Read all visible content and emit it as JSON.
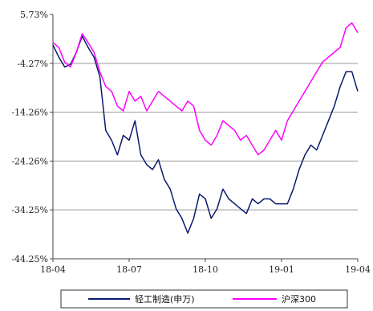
{
  "chart_data": {
    "type": "line",
    "title": "",
    "xlabel": "",
    "ylabel": "",
    "ylim": [
      -44.25,
      5.73
    ],
    "y_ticks": [
      5.73,
      -4.27,
      -14.26,
      -24.26,
      -34.25,
      -44.25
    ],
    "y_tick_labels": [
      "5.73%",
      "-4.27%",
      "-14.26%",
      "-24.26%",
      "-34.25%",
      "-44.25%"
    ],
    "x_tick_labels": [
      "18-04",
      "18-07",
      "18-10",
      "19-01",
      "19-04"
    ],
    "x_ticks_week": [
      0,
      13,
      26,
      39,
      52
    ],
    "grid": "horizontal",
    "legend_position": "bottom",
    "series": [
      {
        "name": "轻工制造(申万)",
        "color": "#0a1a6e",
        "x": [
          0,
          1,
          2,
          3,
          4,
          5,
          6,
          7,
          8,
          9,
          10,
          11,
          12,
          13,
          14,
          15,
          16,
          17,
          18,
          19,
          20,
          21,
          22,
          23,
          24,
          25,
          26,
          27,
          28,
          29,
          30,
          31,
          32,
          33,
          34,
          35,
          36,
          37,
          38,
          39,
          40,
          41,
          42,
          43,
          44,
          45,
          46,
          47,
          48,
          49,
          50,
          51,
          52
        ],
        "values": [
          -0.5,
          -3,
          -5,
          -4.5,
          -2,
          1.3,
          -1,
          -3,
          -7,
          -18,
          -20,
          -23,
          -19,
          -20,
          -16,
          -23,
          -25,
          -26,
          -24,
          -28,
          -30,
          -34,
          -36,
          -39,
          -36,
          -31,
          -32,
          -36,
          -34,
          -30,
          -32,
          -33,
          -34,
          -35,
          -32,
          -33,
          -32,
          -32,
          -33,
          -33,
          -33,
          -30,
          -26,
          -23,
          -21,
          -22,
          -19,
          -16,
          -13,
          -9,
          -6,
          -6,
          -10
        ]
      },
      {
        "name": "沪深300",
        "color": "#ff00ff",
        "x": [
          0,
          1,
          2,
          3,
          4,
          5,
          6,
          7,
          8,
          9,
          10,
          11,
          12,
          13,
          14,
          15,
          16,
          17,
          18,
          19,
          20,
          21,
          22,
          23,
          24,
          25,
          26,
          27,
          28,
          29,
          30,
          31,
          32,
          33,
          34,
          35,
          36,
          37,
          38,
          39,
          40,
          41,
          42,
          43,
          44,
          45,
          46,
          47,
          48,
          49,
          50,
          51,
          52
        ],
        "values": [
          0,
          -1,
          -4,
          -5,
          -2,
          1.8,
          0,
          -2,
          -6,
          -9,
          -10,
          -13,
          -14,
          -10,
          -12,
          -11,
          -14,
          -12,
          -10,
          -11,
          -12,
          -13,
          -14,
          -12,
          -13,
          -18,
          -20,
          -21,
          -19,
          -16,
          -17,
          -18,
          -20,
          -19,
          -21,
          -23,
          -22,
          -20,
          -18,
          -20,
          -16,
          -14,
          -12,
          -10,
          -8,
          -6,
          -4,
          -3,
          -2,
          -1,
          3,
          4,
          2
        ]
      }
    ]
  }
}
